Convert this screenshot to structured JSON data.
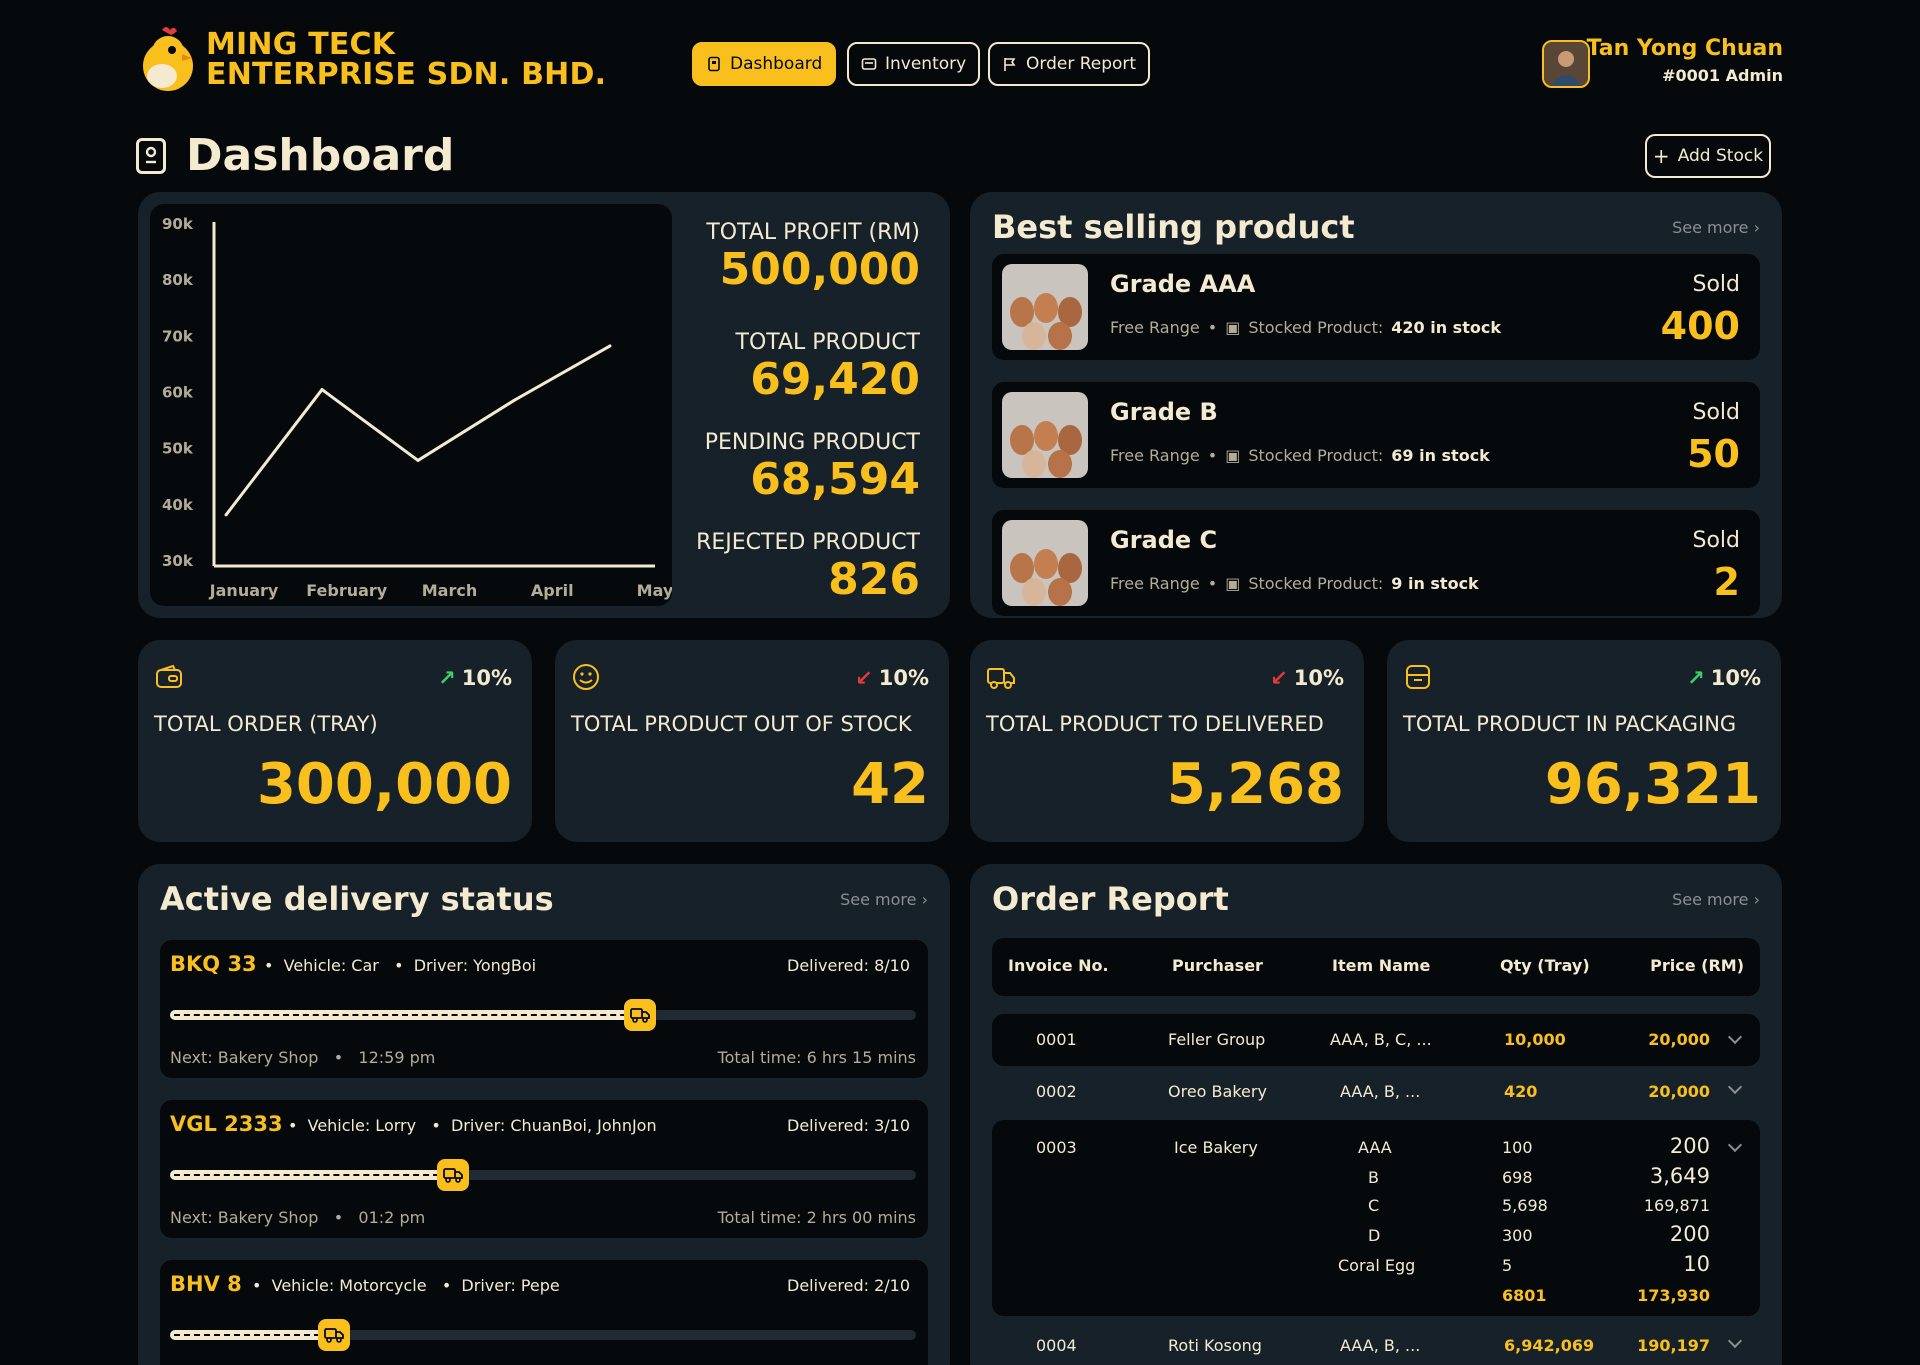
{
  "brand": {
    "line1": "MING TECK",
    "line2": "ENTERPRISE SDN. BHD.",
    "logo_icon": "chicken-logo-icon"
  },
  "nav": [
    {
      "label": "Dashboard",
      "icon": "dashboard-icon",
      "active": true
    },
    {
      "label": "Inventory",
      "icon": "inventory-icon",
      "active": false
    },
    {
      "label": "Order Report",
      "icon": "flag-icon",
      "active": false
    }
  ],
  "user": {
    "name": "Tan Yong Chuan",
    "role": "#0001 Admin"
  },
  "page": {
    "title": "Dashboard",
    "add_stock_label": "Add Stock"
  },
  "chart_data": {
    "type": "line",
    "categories": [
      "January",
      "February",
      "March",
      "April",
      "May"
    ],
    "x": [
      "January",
      "February",
      "March",
      "April",
      "May"
    ],
    "values": [
      39000,
      62000,
      49000,
      60000,
      70000
    ],
    "yticks": [
      "90k",
      "80k",
      "70k",
      "60k",
      "50k",
      "40k",
      "30k"
    ],
    "ylim": [
      30000,
      92000
    ],
    "title": "",
    "xlabel": "",
    "ylabel": "",
    "grid": false
  },
  "stats": [
    {
      "label": "TOTAL PROFIT (RM)",
      "value": "500,000"
    },
    {
      "label": "TOTAL PRODUCT",
      "value": "69,420"
    },
    {
      "label": "PENDING PRODUCT",
      "value": "68,594"
    },
    {
      "label": "REJECTED PRODUCT",
      "value": "826"
    }
  ],
  "best_selling": {
    "title": "Best selling product",
    "see_more": "See more",
    "sold_label": "Sold",
    "stock_prefix": "Stocked Product:",
    "items": [
      {
        "name": "Grade AAA",
        "type": "Free Range",
        "stock": "420 in stock",
        "sold": "400"
      },
      {
        "name": "Grade B",
        "type": "Free Range",
        "stock": "69 in stock",
        "sold": "50"
      },
      {
        "name": "Grade C",
        "type": "Free Range",
        "stock": "9 in stock",
        "sold": "2"
      }
    ]
  },
  "kpis": [
    {
      "label": "TOTAL ORDER (TRAY)",
      "value": "300,000",
      "pct": "10%",
      "trend": "up",
      "icon": "wallet-icon"
    },
    {
      "label": "TOTAL PRODUCT OUT OF STOCK",
      "value": "42",
      "pct": "10%",
      "trend": "down",
      "icon": "smiley-icon"
    },
    {
      "label": "TOTAL PRODUCT TO DELIVERED",
      "value": "5,268",
      "pct": "10%",
      "trend": "down",
      "icon": "truck-icon"
    },
    {
      "label": "TOTAL PRODUCT IN PACKAGING",
      "value": "96,321",
      "pct": "10%",
      "trend": "up",
      "icon": "package-icon"
    }
  ],
  "colors": {
    "accent": "#f9bf1d",
    "up": "#3ecf6a",
    "down": "#e23b3b",
    "card": "#172129",
    "bg": "#05090c"
  },
  "delivery": {
    "title": "Active delivery status",
    "see_more": "See more",
    "items": [
      {
        "plate": "BKQ 33",
        "vehicle": "Vehicle: Car",
        "driver": "Driver: YongBoi",
        "delivered": "Delivered: 8/10",
        "progress": 0.63,
        "next": "Next: Bakery Shop",
        "time": "12:59 pm",
        "total": "Total time: 6 hrs 15 mins"
      },
      {
        "plate": "VGL 2333",
        "vehicle": "Vehicle: Lorry",
        "driver": "Driver: ChuanBoi, JohnJon",
        "delivered": "Delivered: 3/10",
        "progress": 0.38,
        "next": "Next: Bakery Shop",
        "time": "01:2 pm",
        "total": "Total time: 2 hrs 00 mins"
      },
      {
        "plate": "BHV 8",
        "vehicle": "Vehicle: Motorcycle",
        "driver": "Driver: Pepe",
        "delivered": "Delivered: 2/10",
        "progress": 0.22,
        "next": "",
        "time": "",
        "total": ""
      }
    ]
  },
  "order_report": {
    "title": "Order Report",
    "see_more": "See more",
    "headers": [
      "Invoice No.",
      "Purchaser",
      "Item Name",
      "Qty (Tray)",
      "Price (RM)"
    ],
    "rows": [
      {
        "invoice": "0001",
        "purchaser": "Feller Group",
        "item": "AAA, B, C, ...",
        "qty": "10,000",
        "price": "20,000"
      },
      {
        "invoice": "0002",
        "purchaser": "Oreo Bakery",
        "item": "AAA, B, ...",
        "qty": "420",
        "price": "20,000"
      },
      {
        "invoice": "0003",
        "purchaser": "Ice Bakery",
        "items": [
          {
            "item": "AAA",
            "qty": "100",
            "price": "200"
          },
          {
            "item": "B",
            "qty": "698",
            "price": "3,649"
          },
          {
            "item": "C",
            "qty": "5,698",
            "price": "169,871"
          },
          {
            "item": "D",
            "qty": "300",
            "price": "200"
          },
          {
            "item": "Coral Egg",
            "qty": "5",
            "price": "10"
          }
        ],
        "total_qty": "6801",
        "total_price": "173,930"
      },
      {
        "invoice": "0004",
        "purchaser": "Roti Kosong",
        "item": "AAA, B, ...",
        "qty": "6,942,069",
        "price": "190,197"
      }
    ]
  }
}
